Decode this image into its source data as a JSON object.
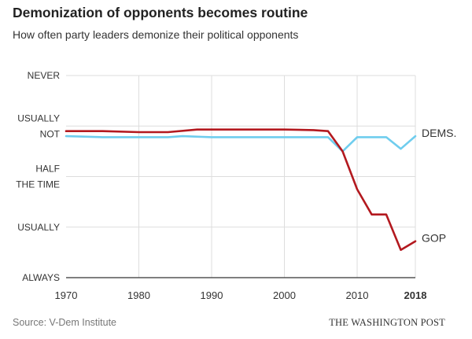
{
  "header": {
    "title": "Demonization of opponents becomes routine",
    "subtitle": "How often party leaders demonize their political opponents"
  },
  "footer": {
    "source": "Source: V-Dem Institute",
    "publisher": "THE WASHINGTON POST"
  },
  "chart_data": {
    "type": "line",
    "title": "Demonization of opponents becomes routine",
    "subtitle": "How often party leaders demonize their political opponents",
    "xlabel": "",
    "ylabel": "",
    "xlim": [
      1970,
      2018
    ],
    "ylim": [
      0,
      4
    ],
    "x_ticks": [
      {
        "value": 1970,
        "label": "1970",
        "bold": false
      },
      {
        "value": 1980,
        "label": "1980",
        "bold": false
      },
      {
        "value": 1990,
        "label": "1990",
        "bold": false
      },
      {
        "value": 2000,
        "label": "2000",
        "bold": false
      },
      {
        "value": 2010,
        "label": "2010",
        "bold": false
      },
      {
        "value": 2018,
        "label": "2018",
        "bold": true
      }
    ],
    "y_ticks": [
      {
        "value": 4,
        "lines": [
          "NEVER"
        ]
      },
      {
        "value": 3,
        "lines": [
          "USUALLY",
          "NOT"
        ]
      },
      {
        "value": 2,
        "lines": [
          "HALF",
          "THE TIME"
        ]
      },
      {
        "value": 1,
        "lines": [
          "USUALLY"
        ]
      },
      {
        "value": 0,
        "lines": [
          "ALWAYS"
        ]
      }
    ],
    "grid": true,
    "series": [
      {
        "name": "DEMS.",
        "color": "#6fcdee",
        "x": [
          1970,
          1975,
          1980,
          1984,
          1986,
          1990,
          2000,
          2006,
          2008,
          2010,
          2014,
          2016,
          2018
        ],
        "y": [
          2.8,
          2.78,
          2.78,
          2.78,
          2.8,
          2.78,
          2.78,
          2.78,
          2.5,
          2.78,
          2.78,
          2.55,
          2.8
        ]
      },
      {
        "name": "GOP",
        "color": "#b3191f",
        "x": [
          1970,
          1975,
          1980,
          1984,
          1988,
          1990,
          2000,
          2004,
          2006,
          2008,
          2010,
          2012,
          2014,
          2016,
          2018
        ],
        "y": [
          2.9,
          2.9,
          2.88,
          2.88,
          2.93,
          2.93,
          2.93,
          2.92,
          2.9,
          2.5,
          1.75,
          1.25,
          1.25,
          0.55,
          0.72
        ]
      }
    ]
  }
}
